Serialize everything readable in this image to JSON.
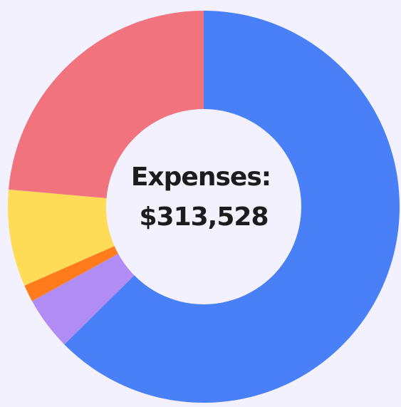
{
  "chart_data": {
    "type": "donut",
    "values": [
      62.6,
      4.4,
      1.4,
      8.0,
      23.6
    ],
    "colors": [
      "#4a80f7",
      "#b18cf4",
      "#ff7b1c",
      "#ffdc58",
      "#f0737e"
    ],
    "center_title": "Expenses:",
    "center_value": "$313,528"
  }
}
